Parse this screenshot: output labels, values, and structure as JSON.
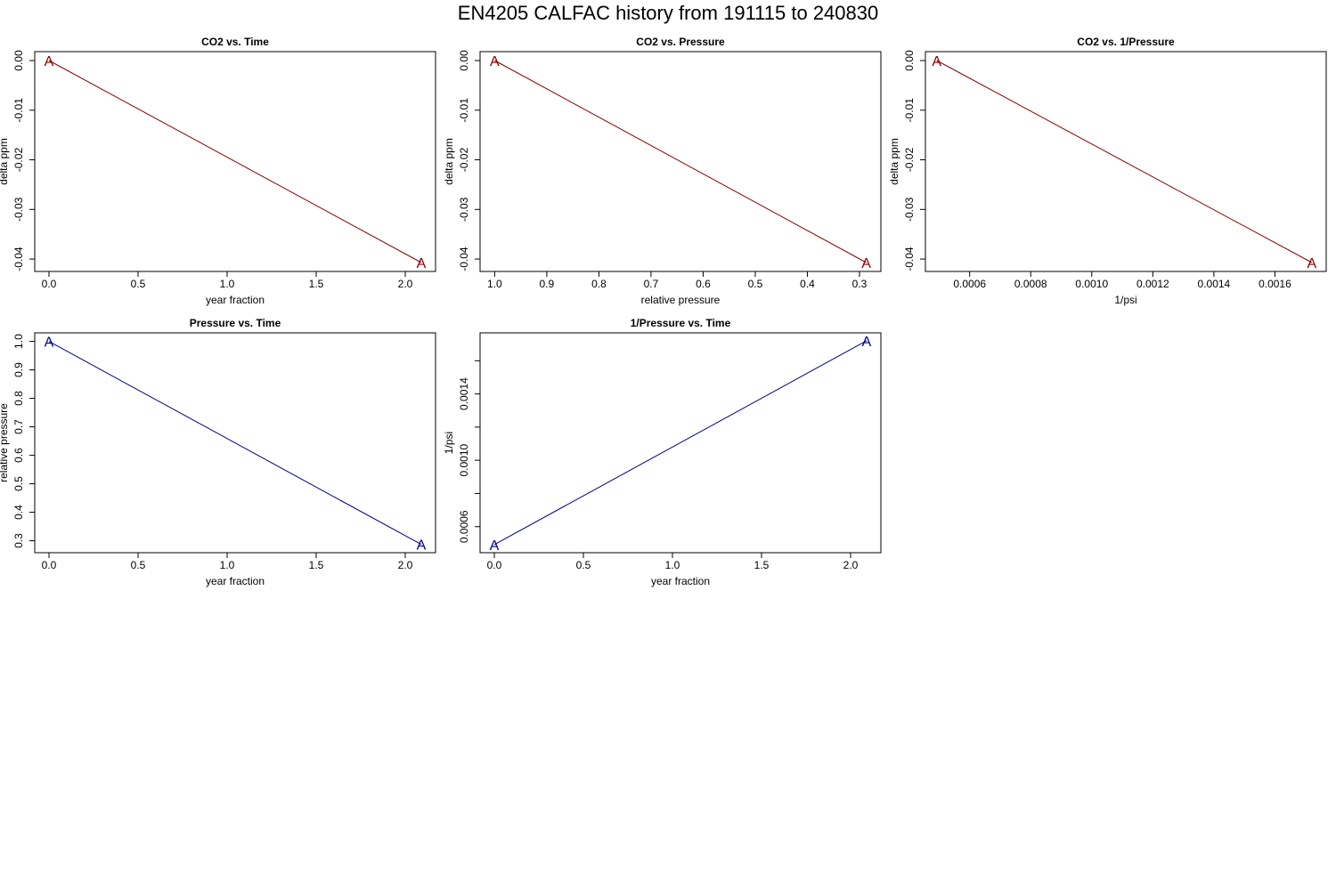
{
  "title": "EN4205   CALFAC history from  191115  to  240830",
  "colors": {
    "co2_series": "#8b0000",
    "pressure_series": "#00008b",
    "frame": "#000000"
  },
  "chart_data": [
    {
      "type": "line",
      "title": "CO2 vs. Time",
      "xlabel": "year fraction",
      "ylabel": "delta ppm",
      "xlim": [
        -0.08,
        2.17
      ],
      "ylim": [
        -0.0425,
        0.0018
      ],
      "x_reversed": false,
      "xticks": [
        0.0,
        0.5,
        1.0,
        1.5,
        2.0
      ],
      "xtick_labels": [
        "0.0",
        "0.5",
        "1.0",
        "1.5",
        "2.0"
      ],
      "yticks": [
        0.0,
        -0.01,
        -0.02,
        -0.03,
        -0.04
      ],
      "ytick_labels": [
        "0.00",
        "-0.01",
        "-0.02",
        "-0.03",
        "-0.04"
      ],
      "series": [
        {
          "marker": "A",
          "color": "#8b0000",
          "points": [
            [
              0.0,
              0.0
            ],
            [
              2.09,
              -0.0407
            ]
          ]
        }
      ]
    },
    {
      "type": "line",
      "title": "CO2 vs. Pressure",
      "xlabel": "relative pressure",
      "ylabel": "delta ppm",
      "xlim": [
        1.028,
        0.259
      ],
      "ylim": [
        -0.0425,
        0.0018
      ],
      "x_reversed": true,
      "xticks": [
        1.0,
        0.9,
        0.8,
        0.7,
        0.6,
        0.5,
        0.4,
        0.3
      ],
      "xtick_labels": [
        "1.0",
        "0.9",
        "0.8",
        "0.7",
        "0.6",
        "0.5",
        "0.4",
        "0.3"
      ],
      "yticks": [
        0.0,
        -0.01,
        -0.02,
        -0.03,
        -0.04
      ],
      "ytick_labels": [
        "0.00",
        "-0.01",
        "-0.02",
        "-0.03",
        "-0.04"
      ],
      "series": [
        {
          "marker": "A",
          "color": "#8b0000",
          "points": [
            [
              1.0,
              0.0
            ],
            [
              0.287,
              -0.0407
            ]
          ]
        }
      ]
    },
    {
      "type": "line",
      "title": "CO2 vs. 1/Pressure",
      "xlabel": "1/psi",
      "ylabel": "delta ppm",
      "xlim": [
        0.000455,
        0.001768
      ],
      "ylim": [
        -0.0425,
        0.0018
      ],
      "x_reversed": false,
      "xticks": [
        0.0006,
        0.0008,
        0.001,
        0.0012,
        0.0014,
        0.0016
      ],
      "xtick_labels": [
        "0.0006",
        "0.0008",
        "0.0010",
        "0.0012",
        "0.0014",
        "0.0016"
      ],
      "yticks": [
        0.0,
        -0.01,
        -0.02,
        -0.03,
        -0.04
      ],
      "ytick_labels": [
        "0.00",
        "-0.01",
        "-0.02",
        "-0.03",
        "-0.04"
      ],
      "series": [
        {
          "marker": "A",
          "color": "#8b0000",
          "points": [
            [
              0.000492,
              0.0
            ],
            [
              0.001721,
              -0.0407
            ]
          ]
        }
      ]
    },
    {
      "type": "line",
      "title": "Pressure vs. Time",
      "xlabel": "year fraction",
      "ylabel": "relative pressure",
      "xlim": [
        -0.08,
        2.17
      ],
      "ylim": [
        0.258,
        1.03
      ],
      "x_reversed": false,
      "xticks": [
        0.0,
        0.5,
        1.0,
        1.5,
        2.0
      ],
      "xtick_labels": [
        "0.0",
        "0.5",
        "1.0",
        "1.5",
        "2.0"
      ],
      "yticks": [
        0.3,
        0.4,
        0.5,
        0.6,
        0.7,
        0.8,
        0.9,
        1.0
      ],
      "ytick_labels": [
        "0.3",
        "0.4",
        "0.5",
        "0.6",
        "0.7",
        "0.8",
        "0.9",
        "1.0"
      ],
      "series": [
        {
          "marker": "A",
          "color": "#00008b",
          "points": [
            [
              0.0,
              1.0
            ],
            [
              2.09,
              0.287
            ]
          ]
        }
      ]
    },
    {
      "type": "line",
      "title": "1/Pressure vs. Time",
      "xlabel": "year fraction",
      "ylabel": "1/psi",
      "xlim": [
        -0.08,
        2.17
      ],
      "ylim": [
        0.000443,
        0.001768
      ],
      "x_reversed": false,
      "xticks": [
        0.0,
        0.5,
        1.0,
        1.5,
        2.0
      ],
      "xtick_labels": [
        "0.0",
        "0.5",
        "1.0",
        "1.5",
        "2.0"
      ],
      "yticks": [
        0.0006,
        0.0008,
        0.001,
        0.0012,
        0.0014,
        0.0016
      ],
      "ytick_labels": [
        "0.0006",
        "",
        "0.0010",
        "",
        "0.0014",
        ""
      ],
      "series": [
        {
          "marker": "A",
          "color": "#00008b",
          "points": [
            [
              0.0,
              0.000492
            ],
            [
              2.09,
              0.001721
            ]
          ]
        }
      ]
    }
  ]
}
